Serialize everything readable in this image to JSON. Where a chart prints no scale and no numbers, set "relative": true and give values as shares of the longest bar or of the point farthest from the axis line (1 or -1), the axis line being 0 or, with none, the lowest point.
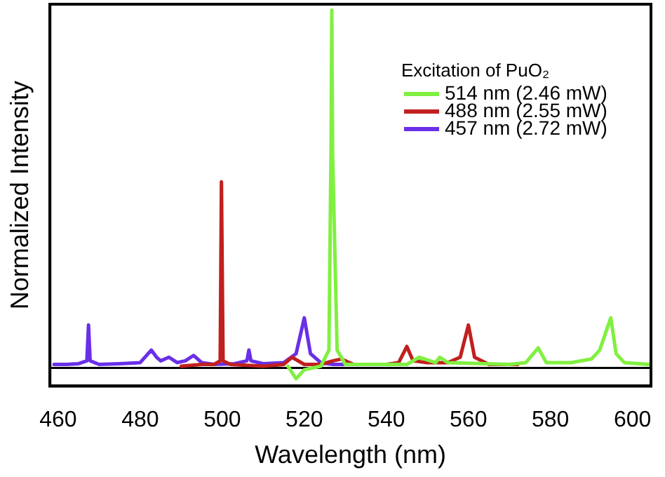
{
  "chart_data": {
    "type": "line",
    "xlabel": "Wavelength (nm)",
    "ylabel": "Normalized Intensity",
    "relative": true,
    "legend": "top right",
    "legend_title": "Excitation of PuO₂",
    "marker": "none",
    "grid": false,
    "tick_labels": "x",
    "xlim": [
      458,
      604.5
    ],
    "xticks": [
      460,
      480,
      500,
      520,
      540,
      560,
      580,
      600
    ],
    "ref_lines": [
      {
        "axis": "y",
        "value": 0,
        "color": "#000000"
      }
    ],
    "series": [
      {
        "name": "514 nm (2.46 mW)",
        "color": "#80f040",
        "x": [
          516,
          518,
          520,
          524,
          526,
          526.5,
          526.7,
          526.9,
          528,
          530,
          545,
          548,
          552,
          553,
          555,
          570,
          574,
          577,
          579,
          585,
          590,
          592,
          594.7,
          596,
          598,
          604
        ],
        "values": [
          0.005,
          -0.03,
          -0.005,
          0.005,
          0.05,
          0.6,
          1,
          0.6,
          0.05,
          0.01,
          0.01,
          0.03,
          0.015,
          0.03,
          0.015,
          0.01,
          0.015,
          0.056,
          0.015,
          0.015,
          0.025,
          0.05,
          0.14,
          0.04,
          0.015,
          0.01
        ]
      },
      {
        "name": "488 nm (2.55 mW)",
        "color": "#c0201e",
        "x": [
          490,
          495,
          498,
          499.5,
          499.8,
          500.2,
          502,
          510,
          515,
          517,
          520,
          524,
          527,
          529,
          532,
          540,
          543,
          545,
          546.5,
          550,
          555,
          558,
          560,
          561.5,
          565,
          570,
          572
        ],
        "values": [
          0.005,
          0.01,
          0.01,
          0.02,
          0.52,
          0.02,
          0.01,
          0.005,
          0.01,
          0.03,
          0.01,
          0.01,
          0.02,
          0.025,
          0.01,
          0.01,
          0.015,
          0.06,
          0.02,
          0.015,
          0.015,
          0.03,
          0.12,
          0.03,
          0.01,
          0.01,
          0.01
        ]
      },
      {
        "name": "457 nm (2.72 mW)",
        "color": "#6a2fe8",
        "x": [
          459,
          462,
          465,
          467,
          467.4,
          467.8,
          470,
          475,
          480,
          482.7,
          484,
          485,
          487,
          489,
          491,
          493,
          495,
          498,
          503,
          506,
          506.5,
          507,
          510,
          515,
          518,
          520,
          521.5,
          524,
          527,
          530
        ],
        "values": [
          0.01,
          0.01,
          0.012,
          0.02,
          0.12,
          0.02,
          0.01,
          0.012,
          0.015,
          0.05,
          0.03,
          0.02,
          0.03,
          0.015,
          0.02,
          0.035,
          0.015,
          0.01,
          0.012,
          0.02,
          0.05,
          0.02,
          0.012,
          0.015,
          0.04,
          0.14,
          0.04,
          0.015,
          0.01,
          0.01
        ]
      }
    ]
  }
}
